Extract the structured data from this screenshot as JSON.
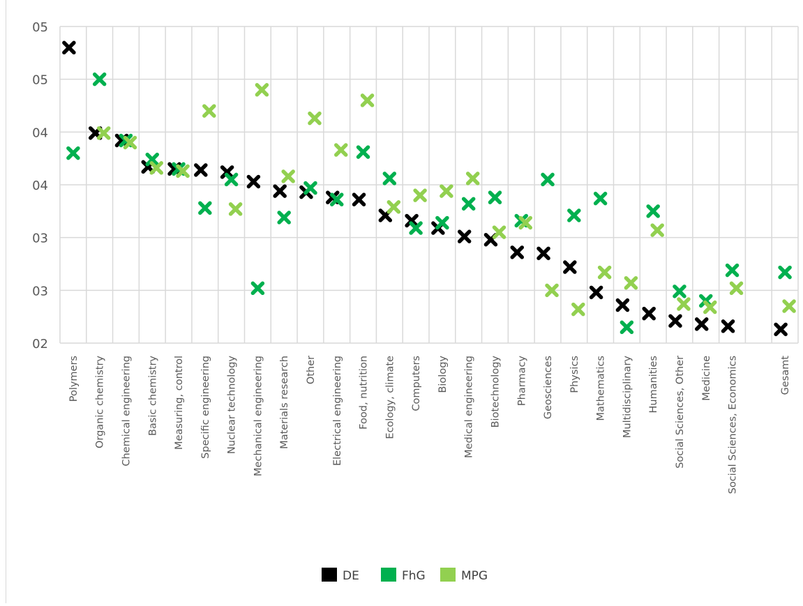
{
  "chart_data": {
    "type": "scatter",
    "marker": "x",
    "y_ticks": [
      "05",
      "05",
      "04",
      "04",
      "03",
      "03",
      "02"
    ],
    "y_range": [
      0.2,
      0.5
    ],
    "grid": true,
    "legend_position": "bottom",
    "categories": [
      "Polymers",
      "Organic chemistry",
      "Chemical engineering",
      "Basic chemistry",
      "Measuring, control",
      "Specific engineering",
      "Nuclear technology",
      "Mechanical engineering",
      "Materials research",
      "Other",
      "Electrical engineering",
      "Food, nutrition",
      "Ecology, climate",
      "Computers",
      "Biology",
      "Medical engineering",
      "Biotechnology",
      "Pharmacy",
      "Geosciences",
      "Physics",
      "Mathematics",
      "Multidisciplinary",
      "Humanities",
      "Social Sciences, Other",
      "Medicine",
      "Social Sciences, Economics",
      "",
      "Gesamt"
    ],
    "series": [
      {
        "name": "DE",
        "color": "#000000",
        "values": [
          0.48,
          0.399,
          0.392,
          0.367,
          0.365,
          0.364,
          0.362,
          0.353,
          0.344,
          0.343,
          0.338,
          0.336,
          0.321,
          0.316,
          0.309,
          0.301,
          0.298,
          0.286,
          0.285,
          0.272,
          0.248,
          0.236,
          0.228,
          0.221,
          0.218,
          0.216,
          null,
          0.213
        ]
      },
      {
        "name": "FhG",
        "color": "#00b04f",
        "values": [
          0.38,
          0.45,
          0.392,
          0.374,
          0.365,
          0.328,
          0.355,
          0.252,
          0.319,
          0.347,
          0.336,
          0.381,
          0.356,
          0.309,
          0.314,
          0.332,
          0.338,
          0.316,
          0.355,
          0.321,
          0.337,
          0.215,
          0.325,
          0.249,
          0.24,
          0.269,
          null,
          0.267
        ]
      },
      {
        "name": "MPG",
        "color": "#92d050",
        "values": [
          null,
          0.399,
          0.39,
          0.366,
          0.363,
          0.42,
          0.327,
          0.44,
          0.358,
          0.413,
          0.383,
          0.43,
          0.329,
          0.34,
          0.344,
          0.356,
          0.305,
          0.314,
          0.25,
          0.232,
          0.267,
          0.257,
          0.307,
          0.237,
          0.234,
          0.252,
          null,
          0.235
        ]
      }
    ],
    "legend": [
      {
        "label": "DE",
        "color": "#000000"
      },
      {
        "label": "FhG",
        "color": "#00b04f"
      },
      {
        "label": "MPG",
        "color": "#92d050"
      }
    ]
  }
}
